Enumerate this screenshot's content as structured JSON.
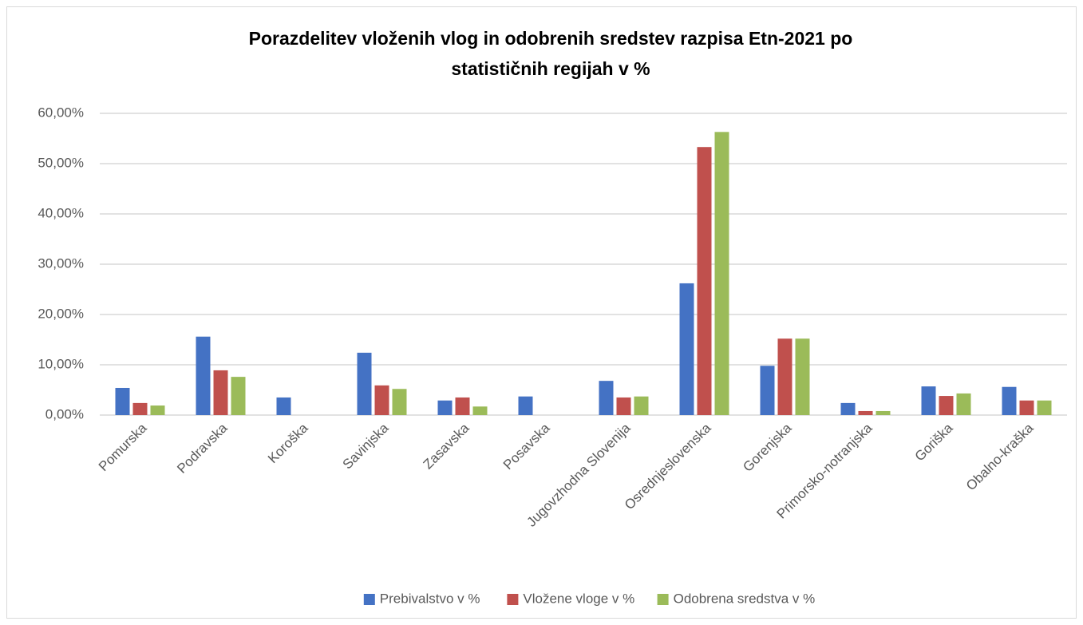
{
  "chart_data": {
    "type": "bar",
    "title": [
      "Porazdelitev vloženih vlog in odobrenih  sredstev razpisa Etn-2021 po",
      "statističnih regijah v %"
    ],
    "categories": [
      "Pomurska",
      "Podravska",
      "Koroška",
      "Savinjska",
      "Zasavska",
      "Posavska",
      "Jugovzhodna Slovenija",
      "Osrednjeslovenska",
      "Gorenjska",
      "Primorsko-notranjska",
      "Goriška",
      "Obalno-kraška"
    ],
    "series": [
      {
        "name": "Prebivalstvo v %",
        "color": "#4472c4",
        "values": [
          5.4,
          15.6,
          3.5,
          12.4,
          2.9,
          3.7,
          6.8,
          26.2,
          9.8,
          2.4,
          5.7,
          5.6
        ]
      },
      {
        "name": "Vložene vloge v %",
        "color": "#c0504d",
        "values": [
          2.4,
          8.9,
          0,
          5.9,
          3.5,
          0,
          3.5,
          53.3,
          15.2,
          0.8,
          3.8,
          2.9
        ]
      },
      {
        "name": "Odobrena sredstva v %",
        "color": "#9bbb59",
        "values": [
          1.9,
          7.6,
          0,
          5.2,
          1.7,
          0,
          3.7,
          56.3,
          15.2,
          0.8,
          4.3,
          2.9
        ]
      }
    ],
    "ylim": [
      0,
      60
    ],
    "yticks": [
      {
        "value": 0,
        "label": "0,00%"
      },
      {
        "value": 10,
        "label": "10,00%"
      },
      {
        "value": 20,
        "label": "20,00%"
      },
      {
        "value": 30,
        "label": "30,00%"
      },
      {
        "value": 40,
        "label": "40,00%"
      },
      {
        "value": 50,
        "label": "50,00%"
      },
      {
        "value": 60,
        "label": "60,00%"
      }
    ],
    "grid": true,
    "legend": "bottom"
  }
}
